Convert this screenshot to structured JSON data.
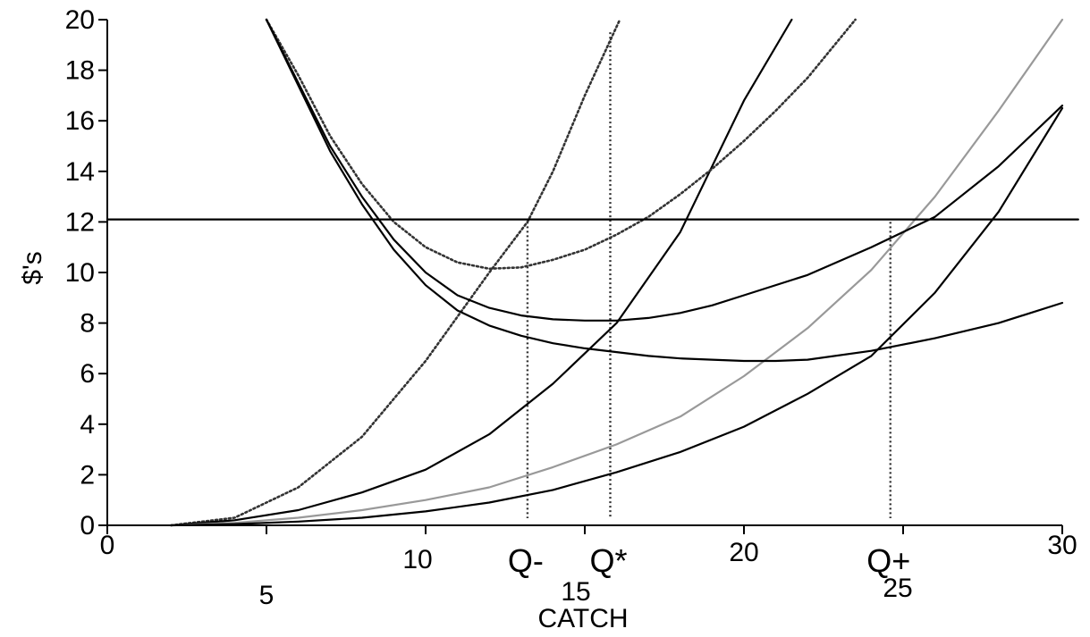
{
  "chart_data": {
    "type": "line",
    "title": "",
    "xlabel": "CATCH",
    "ylabel": "$'s",
    "xlim": [
      0,
      30
    ],
    "ylim": [
      0,
      20
    ],
    "x_ticks": [
      0,
      5,
      10,
      15,
      20,
      25,
      30
    ],
    "y_ticks": [
      0,
      2,
      4,
      6,
      8,
      10,
      12,
      14,
      16,
      18,
      20
    ],
    "grid": false,
    "legend": "none",
    "series": [
      {
        "style": "dotted",
        "color": "#333333",
        "x": [
          2,
          4,
          6,
          8,
          10,
          12,
          13.2,
          14,
          15,
          16.1
        ],
        "y": [
          0,
          0.3,
          1.5,
          3.5,
          6.5,
          10,
          12,
          14,
          17,
          20
        ]
      },
      {
        "style": "solid",
        "color": "#000000",
        "x": [
          2,
          4,
          6,
          8,
          10,
          12,
          14,
          16,
          18,
          20,
          21.5
        ],
        "y": [
          0,
          0.2,
          0.6,
          1.3,
          2.2,
          3.6,
          5.6,
          8,
          11.6,
          16.8,
          20
        ]
      },
      {
        "style": "solid",
        "color": "#999999",
        "x": [
          2,
          4,
          6,
          8,
          10,
          12,
          14,
          16,
          18,
          20,
          22,
          24,
          26,
          28,
          30
        ],
        "y": [
          0,
          0.1,
          0.3,
          0.6,
          1,
          1.5,
          2.3,
          3.2,
          4.3,
          5.9,
          7.8,
          10.1,
          13,
          16.4,
          20
        ]
      },
      {
        "style": "solid",
        "color": "#000000",
        "x": [
          2,
          4,
          6,
          8,
          10,
          12,
          14,
          16,
          18,
          20,
          22,
          24,
          26,
          28,
          30
        ],
        "y": [
          0,
          0.05,
          0.15,
          0.3,
          0.55,
          0.9,
          1.4,
          2.1,
          2.9,
          3.9,
          5.2,
          6.7,
          9.2,
          12.4,
          16.5
        ]
      },
      {
        "style": "dotted",
        "color": "#333333",
        "x": [
          5,
          6,
          7,
          8,
          9,
          10,
          11,
          12,
          13,
          14,
          15,
          16,
          17,
          18,
          19,
          20,
          21,
          22,
          23.5
        ],
        "y": [
          20,
          17.8,
          15.4,
          13.5,
          12,
          11,
          10.4,
          10.15,
          10.2,
          10.5,
          10.9,
          11.5,
          12.2,
          13.1,
          14.1,
          15.2,
          16.4,
          17.7,
          20
        ]
      },
      {
        "style": "solid",
        "color": "#000000",
        "x": [
          5,
          6,
          7,
          8,
          9,
          10,
          11,
          12,
          13,
          14,
          15,
          16,
          17,
          18,
          19,
          20,
          22,
          24,
          26,
          28,
          30
        ],
        "y": [
          20,
          17.5,
          15,
          13,
          11.3,
          10,
          9.1,
          8.6,
          8.3,
          8.15,
          8.1,
          8.1,
          8.2,
          8.4,
          8.7,
          9.1,
          9.9,
          11,
          12.2,
          14.2,
          16.6
        ]
      },
      {
        "style": "solid",
        "color": "#000000",
        "x": [
          5,
          6,
          7,
          8,
          9,
          10,
          11,
          12,
          13,
          14,
          15,
          16,
          17,
          18,
          19,
          20,
          21,
          22,
          24,
          26,
          28,
          30
        ],
        "y": [
          20,
          17.4,
          14.8,
          12.7,
          10.9,
          9.5,
          8.5,
          7.9,
          7.5,
          7.2,
          7,
          6.85,
          6.7,
          6.6,
          6.55,
          6.5,
          6.5,
          6.55,
          6.9,
          7.4,
          8,
          8.8
        ]
      },
      {
        "style": "solid",
        "color": "#000000",
        "x": [
          0,
          30.5
        ],
        "y": [
          12.1,
          12.1
        ]
      }
    ],
    "annotations": [
      {
        "label": "Q-",
        "x": 13.2,
        "y_top": 12
      },
      {
        "label": "Q*",
        "x": 15.8,
        "y_top": 19.5
      },
      {
        "label": "Q+",
        "x": 24.6,
        "y_top": 12
      }
    ]
  }
}
